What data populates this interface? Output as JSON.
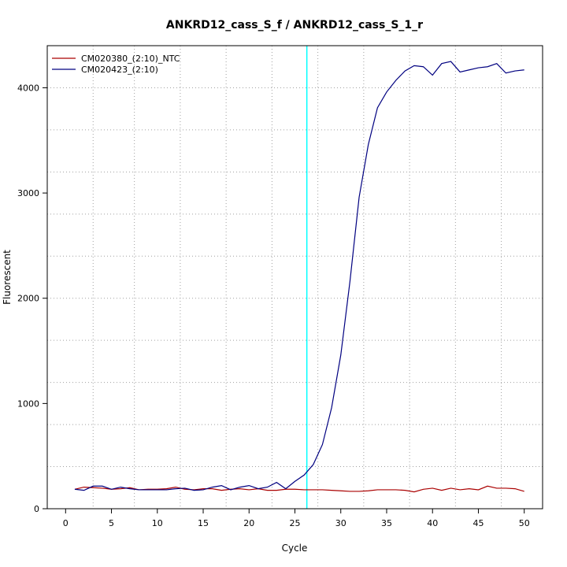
{
  "chart_data": {
    "type": "line",
    "title": "ANKRD12_cass_S_f / ANKRD12_cass_S_1_r",
    "xlabel": "Cycle",
    "ylabel": "Fluorescent",
    "xlim": [
      -2,
      52
    ],
    "ylim": [
      0,
      4400
    ],
    "x_ticks": [
      0,
      5,
      10,
      15,
      20,
      25,
      30,
      35,
      40,
      45,
      50
    ],
    "y_ticks": [
      0,
      1000,
      2000,
      3000,
      4000
    ],
    "x_grid": [
      3,
      7.5,
      12.5,
      17.5,
      22.5,
      27.5,
      32.5,
      37.5,
      42.5,
      47.5
    ],
    "y_grid": [
      400,
      800,
      1200,
      1600,
      2000,
      2400,
      2800,
      3200,
      3600,
      4000,
      4400
    ],
    "grid": true,
    "threshold_x": 26.3,
    "threshold_color": "#00ffff",
    "legend_position": "top-left",
    "x": [
      1,
      2,
      3,
      4,
      5,
      6,
      7,
      8,
      9,
      10,
      11,
      12,
      13,
      14,
      15,
      16,
      17,
      18,
      19,
      20,
      21,
      22,
      23,
      24,
      25,
      26,
      27,
      28,
      29,
      30,
      31,
      32,
      33,
      34,
      35,
      36,
      37,
      38,
      39,
      40,
      41,
      42,
      43,
      44,
      45,
      46,
      47,
      48,
      49,
      50
    ],
    "series": [
      {
        "name": "CM020380_(2:10)_NTC",
        "color": "#aa0000",
        "values": [
          185,
          205,
          200,
          195,
          185,
          190,
          200,
          180,
          185,
          185,
          190,
          205,
          185,
          180,
          190,
          190,
          175,
          185,
          190,
          180,
          190,
          175,
          175,
          185,
          185,
          180,
          180,
          180,
          175,
          170,
          165,
          165,
          170,
          180,
          180,
          180,
          175,
          160,
          185,
          195,
          175,
          195,
          180,
          190,
          180,
          215,
          195,
          195,
          190,
          165
        ]
      },
      {
        "name": "CM020423_(2:10)",
        "color": "#000080",
        "values": [
          185,
          175,
          215,
          215,
          185,
          205,
          190,
          180,
          180,
          180,
          180,
          190,
          195,
          175,
          180,
          205,
          220,
          180,
          205,
          220,
          190,
          205,
          250,
          190,
          260,
          320,
          420,
          610,
          960,
          1460,
          2160,
          2960,
          3460,
          3810,
          3960,
          4070,
          4160,
          4210,
          4200,
          4120,
          4230,
          4250,
          4150,
          4170,
          4190,
          4200,
          4230,
          4140,
          4160,
          4170
        ]
      }
    ]
  }
}
